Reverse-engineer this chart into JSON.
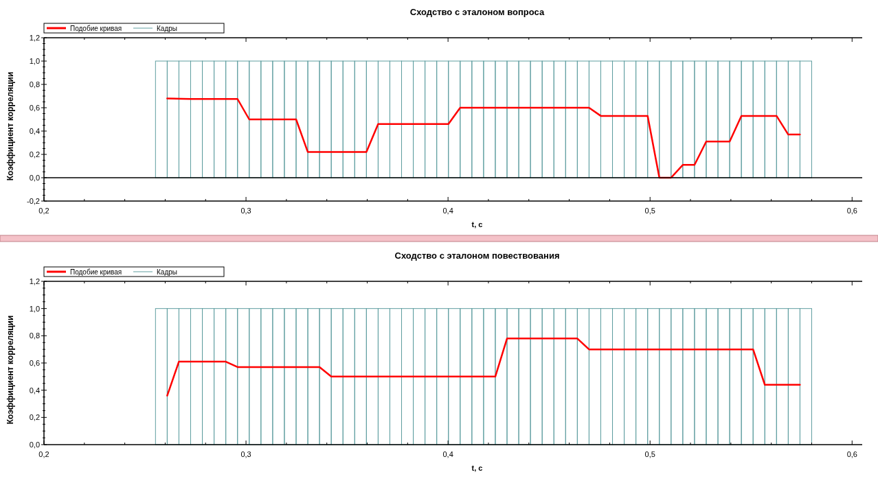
{
  "chart_data": [
    {
      "type": "line",
      "title": "Сходство с эталоном вопроса",
      "xlabel": "t, c",
      "ylabel": "Коэффициент корреляции",
      "legend": "top left",
      "grid": false,
      "marker": "none",
      "line_style": "solid",
      "xlim": [
        0.2,
        0.605
      ],
      "xticks": [
        {
          "value": 0.2,
          "label": "0,2"
        },
        {
          "value": 0.22,
          "label": null
        },
        {
          "value": 0.24,
          "label": null
        },
        {
          "value": 0.26,
          "label": null
        },
        {
          "value": 0.28,
          "label": null
        },
        {
          "value": 0.3,
          "label": "0,3"
        },
        {
          "value": 0.32,
          "label": null
        },
        {
          "value": 0.34,
          "label": null
        },
        {
          "value": 0.36,
          "label": null
        },
        {
          "value": 0.38,
          "label": null
        },
        {
          "value": 0.4,
          "label": "0,4"
        },
        {
          "value": 0.42,
          "label": null
        },
        {
          "value": 0.44,
          "label": null
        },
        {
          "value": 0.46,
          "label": null
        },
        {
          "value": 0.48,
          "label": null
        },
        {
          "value": 0.5,
          "label": "0,5"
        },
        {
          "value": 0.52,
          "label": null
        },
        {
          "value": 0.54,
          "label": null
        },
        {
          "value": 0.56,
          "label": null
        },
        {
          "value": 0.58,
          "label": null
        },
        {
          "value": 0.6,
          "label": "0,6"
        }
      ],
      "ylim": [
        -0.2,
        1.2
      ],
      "yticks": [
        {
          "value": -0.2,
          "label": "-0,2"
        },
        {
          "value": -0.15,
          "label": null
        },
        {
          "value": -0.1,
          "label": null
        },
        {
          "value": -0.05,
          "label": null
        },
        {
          "value": 0,
          "label": "0,0"
        },
        {
          "value": 0.05,
          "label": null
        },
        {
          "value": 0.1,
          "label": null
        },
        {
          "value": 0.15,
          "label": null
        },
        {
          "value": 0.2,
          "label": "0,2"
        },
        {
          "value": 0.25,
          "label": null
        },
        {
          "value": 0.3,
          "label": null
        },
        {
          "value": 0.35,
          "label": null
        },
        {
          "value": 0.4,
          "label": "0,4"
        },
        {
          "value": 0.45,
          "label": null
        },
        {
          "value": 0.5,
          "label": null
        },
        {
          "value": 0.55,
          "label": null
        },
        {
          "value": 0.6,
          "label": "0,6"
        },
        {
          "value": 0.65,
          "label": null
        },
        {
          "value": 0.7,
          "label": null
        },
        {
          "value": 0.75,
          "label": null
        },
        {
          "value": 0.8,
          "label": "0,8"
        },
        {
          "value": 0.85,
          "label": null
        },
        {
          "value": 0.9,
          "label": null
        },
        {
          "value": 0.95,
          "label": null
        },
        {
          "value": 1.0,
          "label": "1,0"
        },
        {
          "value": 1.05,
          "label": null
        },
        {
          "value": 1.1,
          "label": null
        },
        {
          "value": 1.15,
          "label": null
        },
        {
          "value": 1.2,
          "label": "1,2"
        }
      ],
      "ref_lines": [
        {
          "axis": "y",
          "value": 0,
          "color": "#000000"
        }
      ],
      "series": [
        {
          "name": "Подобие кривая",
          "color": "#ff0000",
          "x": [
            0.261,
            0.2726,
            0.2958,
            0.3016,
            0.3248,
            0.3306,
            0.3596,
            0.3654,
            0.4002,
            0.406,
            0.4698,
            0.4756,
            0.4988,
            0.5046,
            0.5104,
            0.5162,
            0.522,
            0.5278,
            0.5394,
            0.5452,
            0.5626,
            0.5684,
            0.5742
          ],
          "values": [
            0.68,
            0.675,
            0.675,
            0.5,
            0.5,
            0.22,
            0.22,
            0.46,
            0.46,
            0.6,
            0.6,
            0.53,
            0.53,
            0,
            0,
            0.11,
            0.11,
            0.31,
            0.31,
            0.53,
            0.53,
            0.37,
            0.37
          ]
        },
        {
          "name": "Кадры",
          "type": "bar",
          "color": "#5f9ea0",
          "x": [
            0.2581,
            0.2639,
            0.2697,
            0.2755,
            0.2813,
            0.2871,
            0.2929,
            0.2987,
            0.3045,
            0.3103,
            0.3161,
            0.3219,
            0.3277,
            0.3335,
            0.3393,
            0.3451,
            0.3509,
            0.3567,
            0.3625,
            0.3683,
            0.3741,
            0.3799,
            0.3857,
            0.3915,
            0.3973,
            0.4031,
            0.4089,
            0.4147,
            0.4205,
            0.4263,
            0.4321,
            0.4379,
            0.4437,
            0.4495,
            0.4553,
            0.4611,
            0.4669,
            0.4727,
            0.4785,
            0.4843,
            0.4901,
            0.4959,
            0.5017,
            0.5075,
            0.5133,
            0.5191,
            0.5249,
            0.5307,
            0.5365,
            0.5423,
            0.5481,
            0.5539,
            0.5597,
            0.5655,
            0.5713,
            0.5771
          ],
          "values": [
            1,
            1,
            1,
            1,
            1,
            1,
            1,
            1,
            1,
            1,
            1,
            1,
            1,
            1,
            1,
            1,
            1,
            1,
            1,
            1,
            1,
            1,
            1,
            1,
            1,
            1,
            1,
            1,
            1,
            1,
            1,
            1,
            1,
            1,
            1,
            1,
            1,
            1,
            1,
            1,
            1,
            1,
            1,
            1,
            1,
            1,
            1,
            1,
            1,
            1,
            1,
            1,
            1,
            1,
            1,
            1
          ]
        }
      ]
    },
    {
      "type": "line",
      "title": "Сходство с эталоном повествования",
      "xlabel": "t, c",
      "ylabel": "Коэффициент корреляции",
      "legend": "top left",
      "grid": false,
      "marker": "none",
      "line_style": "solid",
      "xlim": [
        0.2,
        0.605
      ],
      "xticks": [
        {
          "value": 0.2,
          "label": "0,2"
        },
        {
          "value": 0.22,
          "label": null
        },
        {
          "value": 0.24,
          "label": null
        },
        {
          "value": 0.26,
          "label": null
        },
        {
          "value": 0.28,
          "label": null
        },
        {
          "value": 0.3,
          "label": "0,3"
        },
        {
          "value": 0.32,
          "label": null
        },
        {
          "value": 0.34,
          "label": null
        },
        {
          "value": 0.36,
          "label": null
        },
        {
          "value": 0.38,
          "label": null
        },
        {
          "value": 0.4,
          "label": "0,4"
        },
        {
          "value": 0.42,
          "label": null
        },
        {
          "value": 0.44,
          "label": null
        },
        {
          "value": 0.46,
          "label": null
        },
        {
          "value": 0.48,
          "label": null
        },
        {
          "value": 0.5,
          "label": "0,5"
        },
        {
          "value": 0.52,
          "label": null
        },
        {
          "value": 0.54,
          "label": null
        },
        {
          "value": 0.56,
          "label": null
        },
        {
          "value": 0.58,
          "label": null
        },
        {
          "value": 0.6,
          "label": "0,6"
        }
      ],
      "ylim": [
        0,
        1.2
      ],
      "yticks": [
        {
          "value": 0,
          "label": "0,0"
        },
        {
          "value": 0.05,
          "label": null
        },
        {
          "value": 0.1,
          "label": null
        },
        {
          "value": 0.15,
          "label": null
        },
        {
          "value": 0.2,
          "label": "0,2"
        },
        {
          "value": 0.25,
          "label": null
        },
        {
          "value": 0.3,
          "label": null
        },
        {
          "value": 0.35,
          "label": null
        },
        {
          "value": 0.4,
          "label": "0,4"
        },
        {
          "value": 0.45,
          "label": null
        },
        {
          "value": 0.5,
          "label": null
        },
        {
          "value": 0.55,
          "label": null
        },
        {
          "value": 0.6,
          "label": "0,6"
        },
        {
          "value": 0.65,
          "label": null
        },
        {
          "value": 0.7,
          "label": null
        },
        {
          "value": 0.75,
          "label": null
        },
        {
          "value": 0.8,
          "label": "0,8"
        },
        {
          "value": 0.85,
          "label": null
        },
        {
          "value": 0.9,
          "label": null
        },
        {
          "value": 0.95,
          "label": null
        },
        {
          "value": 1.0,
          "label": "1,0"
        },
        {
          "value": 1.05,
          "label": null
        },
        {
          "value": 1.1,
          "label": null
        },
        {
          "value": 1.15,
          "label": null
        },
        {
          "value": 1.2,
          "label": "1,2"
        }
      ],
      "series": [
        {
          "name": "Подобие кривая",
          "color": "#ff0000",
          "x": [
            0.261,
            0.2668,
            0.29,
            0.2958,
            0.3364,
            0.3422,
            0.4234,
            0.4292,
            0.464,
            0.4698,
            0.551,
            0.5568,
            0.5742
          ],
          "values": [
            0.36,
            0.61,
            0.61,
            0.57,
            0.57,
            0.5,
            0.5,
            0.78,
            0.78,
            0.7,
            0.7,
            0.44,
            0.44
          ]
        },
        {
          "name": "Кадры",
          "type": "bar",
          "color": "#5f9ea0",
          "x": [
            0.2581,
            0.2639,
            0.2697,
            0.2755,
            0.2813,
            0.2871,
            0.2929,
            0.2987,
            0.3045,
            0.3103,
            0.3161,
            0.3219,
            0.3277,
            0.3335,
            0.3393,
            0.3451,
            0.3509,
            0.3567,
            0.3625,
            0.3683,
            0.3741,
            0.3799,
            0.3857,
            0.3915,
            0.3973,
            0.4031,
            0.4089,
            0.4147,
            0.4205,
            0.4263,
            0.4321,
            0.4379,
            0.4437,
            0.4495,
            0.4553,
            0.4611,
            0.4669,
            0.4727,
            0.4785,
            0.4843,
            0.4901,
            0.4959,
            0.5017,
            0.5075,
            0.5133,
            0.5191,
            0.5249,
            0.5307,
            0.5365,
            0.5423,
            0.5481,
            0.5539,
            0.5597,
            0.5655,
            0.5713,
            0.5771
          ],
          "values": [
            1,
            1,
            1,
            1,
            1,
            1,
            1,
            1,
            1,
            1,
            1,
            1,
            1,
            1,
            1,
            1,
            1,
            1,
            1,
            1,
            1,
            1,
            1,
            1,
            1,
            1,
            1,
            1,
            1,
            1,
            1,
            1,
            1,
            1,
            1,
            1,
            1,
            1,
            1,
            1,
            1,
            1,
            1,
            1,
            1,
            1,
            1,
            1,
            1,
            1,
            1,
            1,
            1,
            1,
            1,
            1
          ]
        }
      ]
    }
  ]
}
